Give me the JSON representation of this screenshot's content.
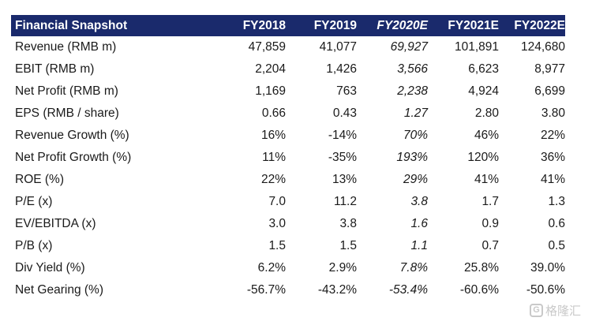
{
  "table": {
    "title": "Financial Snapshot",
    "columns": [
      "FY2018",
      "FY2019",
      "FY2020E",
      "FY2021E",
      "FY2022E"
    ],
    "estimate_column_index": 2,
    "header_bg": "#1a2a6c",
    "rows": [
      {
        "label": "Revenue (RMB m)",
        "values": [
          "47,859",
          "41,077",
          "69,927",
          "101,891",
          "124,680"
        ]
      },
      {
        "label": "EBIT (RMB m)",
        "values": [
          "2,204",
          "1,426",
          "3,566",
          "6,623",
          "8,977"
        ]
      },
      {
        "label": "Net Profit (RMB m)",
        "values": [
          "1,169",
          "763",
          "2,238",
          "4,924",
          "6,699"
        ]
      },
      {
        "label": "EPS (RMB / share)",
        "values": [
          "0.66",
          "0.43",
          "1.27",
          "2.80",
          "3.80"
        ]
      },
      {
        "label": "Revenue Growth (%)",
        "values": [
          "16%",
          "-14%",
          "70%",
          "46%",
          "22%"
        ]
      },
      {
        "label": "Net Profit Growth (%)",
        "values": [
          "11%",
          "-35%",
          "193%",
          "120%",
          "36%"
        ]
      },
      {
        "label": "ROE (%)",
        "values": [
          "22%",
          "13%",
          "29%",
          "41%",
          "41%"
        ]
      },
      {
        "label": "P/E (x)",
        "values": [
          "7.0",
          "11.2",
          "3.8",
          "1.7",
          "1.3"
        ]
      },
      {
        "label": "EV/EBITDA (x)",
        "values": [
          "3.0",
          "3.8",
          "1.6",
          "0.9",
          "0.6"
        ]
      },
      {
        "label": "P/B (x)",
        "values": [
          "1.5",
          "1.5",
          "1.1",
          "0.7",
          "0.5"
        ]
      },
      {
        "label": "Div Yield (%)",
        "values": [
          "6.2%",
          "2.9%",
          "7.8%",
          "25.8%",
          "39.0%"
        ]
      },
      {
        "label": "Net Gearing (%)",
        "values": [
          "-56.7%",
          "-43.2%",
          "-53.4%",
          "-60.6%",
          "-50.6%"
        ]
      }
    ]
  },
  "watermark": {
    "icon": "g-logo-icon",
    "icon_glyph": "G",
    "text": "格隆汇"
  }
}
